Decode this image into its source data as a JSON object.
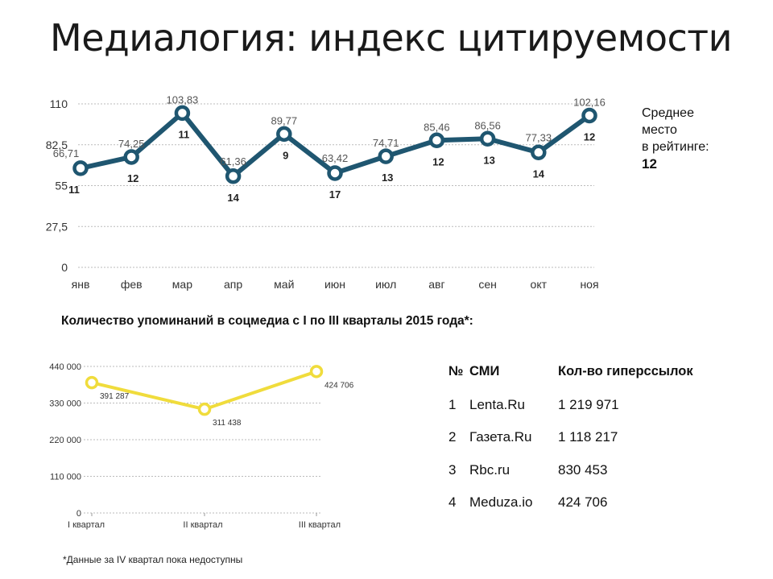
{
  "page": {
    "title": "Медиалогия: индекс цитируемости"
  },
  "chart_data": [
    {
      "type": "line",
      "title": "",
      "categories": [
        "янв",
        "фев",
        "мар",
        "апр",
        "май",
        "июн",
        "июл",
        "авг",
        "сен",
        "окт",
        "ноя"
      ],
      "values": [
        66.71,
        74.25,
        103.83,
        61.36,
        89.77,
        63.42,
        74.71,
        85.46,
        86.56,
        77.33,
        102.16
      ],
      "value_labels": [
        "66,71",
        "74,25",
        "103,83",
        "61,36",
        "89,77",
        "63,42",
        "74,71",
        "85,46",
        "86,56",
        "77,33",
        "102,16"
      ],
      "rank_labels": [
        "11",
        "12",
        "11",
        "14",
        "9",
        "17",
        "13",
        "12",
        "13",
        "14",
        "12"
      ],
      "yticks": [
        0,
        27.5,
        55,
        82.5,
        110
      ],
      "ytick_labels": [
        "0",
        "27,5",
        "55",
        "82,5",
        "110"
      ],
      "ylim": [
        0,
        110
      ],
      "grid": true,
      "line_color": "#1f5670"
    },
    {
      "type": "line",
      "title": "Количество упоминаний в соцмедиа с I по III кварталы 2015 года*:",
      "categories": [
        "I квартал",
        "II квартал",
        "III квартал"
      ],
      "values": [
        391287,
        311438,
        424706
      ],
      "value_labels": [
        "391 287",
        "311 438",
        "424 706"
      ],
      "yticks": [
        0,
        110000,
        220000,
        330000,
        440000
      ],
      "ytick_labels": [
        "0",
        "110 000",
        "220 000",
        "330 000",
        "440 000"
      ],
      "ylim": [
        0,
        440000
      ],
      "grid": true,
      "line_color": "#f0dc3c"
    }
  ],
  "side_note": {
    "line1": "Среднее",
    "line2": "место",
    "line3": "в рейтинге:",
    "value": "12"
  },
  "media_table": {
    "headers": {
      "num": "№",
      "name": "СМИ",
      "links": "Кол-во гиперссылок"
    },
    "rows": [
      {
        "num": "1",
        "name": "Lenta.Ru",
        "links": "1 219 971"
      },
      {
        "num": "2",
        "name": "Газета.Ru",
        "links": "1 118 217"
      },
      {
        "num": "3",
        "name": "Rbc.ru",
        "links": "830 453"
      },
      {
        "num": "4",
        "name": "Meduza.io",
        "links": "424 706"
      }
    ]
  },
  "footnote": "*Данные за IV квартал пока недоступны"
}
